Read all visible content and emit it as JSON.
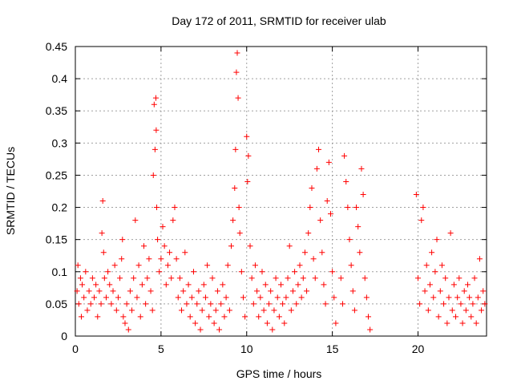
{
  "chart_data": {
    "type": "scatter",
    "title": "Day 172 of 2011, SRMTID for receiver ulab",
    "xlabel": "GPS time / hours",
    "ylabel": "SRMTID / TECUs",
    "xlim": [
      0,
      24
    ],
    "ylim": [
      0,
      0.45
    ],
    "x_ticks": [
      0,
      5,
      10,
      15,
      20
    ],
    "y_ticks": [
      0,
      0.05,
      0.1,
      0.15,
      0.2,
      0.25,
      0.3,
      0.35,
      0.4,
      0.45
    ],
    "x_tick_labels": [
      "0",
      "5",
      "10",
      "15",
      "20"
    ],
    "y_tick_labels": [
      "0",
      "0.05",
      "0.1",
      "0.15",
      "0.2",
      "0.25",
      "0.3",
      "0.35",
      "0.4",
      "0.45"
    ],
    "grid": true,
    "legend": "none",
    "marker": "plus",
    "series": [
      {
        "color": "#ff0000",
        "points": [
          [
            0.1,
            0.07
          ],
          [
            0.15,
            0.11
          ],
          [
            0.2,
            0.05
          ],
          [
            0.3,
            0.09
          ],
          [
            0.35,
            0.03
          ],
          [
            0.4,
            0.08
          ],
          [
            0.5,
            0.06
          ],
          [
            0.6,
            0.1
          ],
          [
            0.7,
            0.04
          ],
          [
            0.8,
            0.07
          ],
          [
            0.9,
            0.05
          ],
          [
            1.0,
            0.09
          ],
          [
            1.1,
            0.06
          ],
          [
            1.2,
            0.08
          ],
          [
            1.3,
            0.03
          ],
          [
            1.4,
            0.07
          ],
          [
            1.5,
            0.05
          ],
          [
            1.55,
            0.16
          ],
          [
            1.6,
            0.21
          ],
          [
            1.65,
            0.13
          ],
          [
            1.7,
            0.09
          ],
          [
            1.8,
            0.06
          ],
          [
            1.9,
            0.1
          ],
          [
            2.0,
            0.08
          ],
          [
            2.1,
            0.05
          ],
          [
            2.2,
            0.07
          ],
          [
            2.3,
            0.11
          ],
          [
            2.4,
            0.04
          ],
          [
            2.5,
            0.06
          ],
          [
            2.6,
            0.09
          ],
          [
            2.7,
            0.12
          ],
          [
            2.75,
            0.15
          ],
          [
            2.8,
            0.03
          ],
          [
            2.9,
            0.02
          ],
          [
            3.0,
            0.05
          ],
          [
            3.1,
            0.01
          ],
          [
            3.2,
            0.07
          ],
          [
            3.3,
            0.04
          ],
          [
            3.4,
            0.09
          ],
          [
            3.5,
            0.18
          ],
          [
            3.6,
            0.06
          ],
          [
            3.7,
            0.11
          ],
          [
            3.8,
            0.03
          ],
          [
            3.9,
            0.08
          ],
          [
            4.0,
            0.14
          ],
          [
            4.1,
            0.05
          ],
          [
            4.2,
            0.09
          ],
          [
            4.3,
            0.12
          ],
          [
            4.4,
            0.07
          ],
          [
            4.5,
            0.04
          ],
          [
            4.55,
            0.25
          ],
          [
            4.6,
            0.36
          ],
          [
            4.65,
            0.29
          ],
          [
            4.7,
            0.37
          ],
          [
            4.72,
            0.32
          ],
          [
            4.75,
            0.2
          ],
          [
            4.8,
            0.15
          ],
          [
            4.9,
            0.1
          ],
          [
            5.0,
            0.12
          ],
          [
            5.1,
            0.17
          ],
          [
            5.2,
            0.14
          ],
          [
            5.3,
            0.08
          ],
          [
            5.4,
            0.11
          ],
          [
            5.5,
            0.13
          ],
          [
            5.6,
            0.09
          ],
          [
            5.7,
            0.18
          ],
          [
            5.8,
            0.2
          ],
          [
            5.9,
            0.12
          ],
          [
            6.0,
            0.06
          ],
          [
            6.1,
            0.09
          ],
          [
            6.2,
            0.04
          ],
          [
            6.3,
            0.07
          ],
          [
            6.4,
            0.13
          ],
          [
            6.5,
            0.05
          ],
          [
            6.6,
            0.08
          ],
          [
            6.7,
            0.03
          ],
          [
            6.8,
            0.06
          ],
          [
            6.9,
            0.1
          ],
          [
            7.0,
            0.02
          ],
          [
            7.1,
            0.05
          ],
          [
            7.2,
            0.07
          ],
          [
            7.3,
            0.01
          ],
          [
            7.4,
            0.04
          ],
          [
            7.5,
            0.08
          ],
          [
            7.6,
            0.06
          ],
          [
            7.7,
            0.11
          ],
          [
            7.8,
            0.03
          ],
          [
            7.9,
            0.05
          ],
          [
            8.0,
            0.09
          ],
          [
            8.1,
            0.02
          ],
          [
            8.2,
            0.04
          ],
          [
            8.3,
            0.07
          ],
          [
            8.4,
            0.01
          ],
          [
            8.5,
            0.05
          ],
          [
            8.6,
            0.08
          ],
          [
            8.7,
            0.03
          ],
          [
            8.8,
            0.06
          ],
          [
            8.9,
            0.11
          ],
          [
            9.0,
            0.04
          ],
          [
            9.1,
            0.14
          ],
          [
            9.2,
            0.18
          ],
          [
            9.3,
            0.23
          ],
          [
            9.35,
            0.29
          ],
          [
            9.4,
            0.41
          ],
          [
            9.45,
            0.44
          ],
          [
            9.5,
            0.37
          ],
          [
            9.55,
            0.2
          ],
          [
            9.6,
            0.16
          ],
          [
            9.7,
            0.1
          ],
          [
            9.8,
            0.06
          ],
          [
            9.9,
            0.03
          ],
          [
            10.0,
            0.31
          ],
          [
            10.05,
            0.24
          ],
          [
            10.1,
            0.28
          ],
          [
            10.2,
            0.14
          ],
          [
            10.3,
            0.09
          ],
          [
            10.4,
            0.05
          ],
          [
            10.5,
            0.11
          ],
          [
            10.6,
            0.07
          ],
          [
            10.7,
            0.03
          ],
          [
            10.8,
            0.06
          ],
          [
            10.9,
            0.1
          ],
          [
            11.0,
            0.04
          ],
          [
            11.1,
            0.08
          ],
          [
            11.2,
            0.02
          ],
          [
            11.3,
            0.05
          ],
          [
            11.4,
            0.07
          ],
          [
            11.5,
            0.01
          ],
          [
            11.6,
            0.04
          ],
          [
            11.7,
            0.09
          ],
          [
            11.8,
            0.06
          ],
          [
            11.9,
            0.03
          ],
          [
            12.0,
            0.08
          ],
          [
            12.1,
            0.05
          ],
          [
            12.2,
            0.02
          ],
          [
            12.3,
            0.06
          ],
          [
            12.4,
            0.09
          ],
          [
            12.5,
            0.14
          ],
          [
            12.6,
            0.04
          ],
          [
            12.7,
            0.07
          ],
          [
            12.8,
            0.1
          ],
          [
            12.9,
            0.05
          ],
          [
            13.0,
            0.08
          ],
          [
            13.1,
            0.11
          ],
          [
            13.2,
            0.06
          ],
          [
            13.3,
            0.09
          ],
          [
            13.4,
            0.13
          ],
          [
            13.5,
            0.07
          ],
          [
            13.6,
            0.16
          ],
          [
            13.7,
            0.2
          ],
          [
            13.8,
            0.23
          ],
          [
            13.9,
            0.12
          ],
          [
            14.0,
            0.09
          ],
          [
            14.1,
            0.26
          ],
          [
            14.2,
            0.29
          ],
          [
            14.3,
            0.18
          ],
          [
            14.4,
            0.13
          ],
          [
            14.5,
            0.08
          ],
          [
            14.6,
            0.05
          ],
          [
            14.7,
            0.21
          ],
          [
            14.8,
            0.27
          ],
          [
            14.9,
            0.19
          ],
          [
            15.0,
            0.1
          ],
          [
            15.1,
            0.06
          ],
          [
            15.2,
            0.02
          ],
          [
            15.5,
            0.09
          ],
          [
            15.6,
            0.05
          ],
          [
            15.7,
            0.28
          ],
          [
            15.8,
            0.24
          ],
          [
            15.9,
            0.2
          ],
          [
            16.0,
            0.15
          ],
          [
            16.1,
            0.11
          ],
          [
            16.2,
            0.07
          ],
          [
            16.3,
            0.04
          ],
          [
            16.4,
            0.2
          ],
          [
            16.5,
            0.17
          ],
          [
            16.6,
            0.13
          ],
          [
            16.7,
            0.26
          ],
          [
            16.8,
            0.22
          ],
          [
            16.9,
            0.09
          ],
          [
            17.0,
            0.06
          ],
          [
            17.1,
            0.03
          ],
          [
            17.2,
            0.01
          ],
          [
            19.9,
            0.22
          ],
          [
            20.0,
            0.09
          ],
          [
            20.1,
            0.05
          ],
          [
            20.2,
            0.18
          ],
          [
            20.3,
            0.2
          ],
          [
            20.4,
            0.07
          ],
          [
            20.5,
            0.11
          ],
          [
            20.6,
            0.04
          ],
          [
            20.7,
            0.08
          ],
          [
            20.8,
            0.13
          ],
          [
            20.9,
            0.06
          ],
          [
            21.0,
            0.1
          ],
          [
            21.1,
            0.15
          ],
          [
            21.2,
            0.03
          ],
          [
            21.3,
            0.07
          ],
          [
            21.4,
            0.11
          ],
          [
            21.5,
            0.05
          ],
          [
            21.6,
            0.09
          ],
          [
            21.7,
            0.02
          ],
          [
            21.8,
            0.06
          ],
          [
            21.9,
            0.16
          ],
          [
            22.0,
            0.04
          ],
          [
            22.1,
            0.08
          ],
          [
            22.2,
            0.03
          ],
          [
            22.3,
            0.06
          ],
          [
            22.4,
            0.09
          ],
          [
            22.5,
            0.05
          ],
          [
            22.6,
            0.02
          ],
          [
            22.7,
            0.07
          ],
          [
            22.8,
            0.04
          ],
          [
            22.9,
            0.08
          ],
          [
            23.0,
            0.06
          ],
          [
            23.1,
            0.03
          ],
          [
            23.2,
            0.05
          ],
          [
            23.3,
            0.09
          ],
          [
            23.4,
            0.02
          ],
          [
            23.5,
            0.06
          ],
          [
            23.6,
            0.12
          ],
          [
            23.7,
            0.04
          ],
          [
            23.8,
            0.07
          ],
          [
            23.9,
            0.05
          ]
        ]
      }
    ]
  }
}
